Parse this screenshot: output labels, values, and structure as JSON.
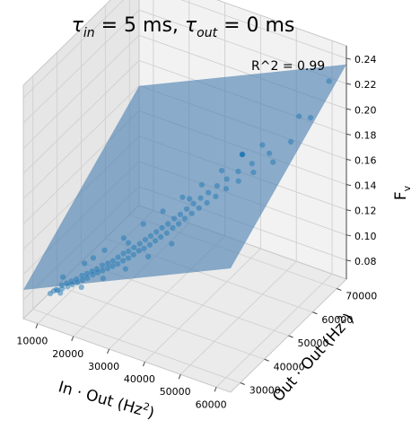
{
  "chart_data": {
    "type": "scatter3d",
    "title": "τin = 5 ms, τout = 0 ms",
    "title_parts": {
      "sym1": "τ",
      "sub1": "in",
      "mid": " = 5 ms, ",
      "sym2": "τ",
      "sub2": "out",
      "end": " = 0 ms"
    },
    "annotation": "R^2 = 0.99",
    "xlabel": "In · Out (Hz²)",
    "xlabel_parts": {
      "base": "In · Out (Hz",
      "sup": "2",
      "end": ")"
    },
    "ylabel": "Out · Out (Hz²)",
    "ylabel_parts": {
      "base": "Out · Out (Hz",
      "sup": "2",
      "end": ")"
    },
    "zlabel": "F_v",
    "zlabel_parts": {
      "base": "F",
      "sub": "v"
    },
    "xlim": [
      6000,
      64000
    ],
    "ylim": [
      26000,
      74000
    ],
    "zlim": [
      0.065,
      0.25
    ],
    "xticks": [
      10000,
      20000,
      30000,
      40000,
      50000,
      60000
    ],
    "yticks": [
      30000,
      40000,
      50000,
      60000,
      70000
    ],
    "zticks": [
      0.08,
      0.1,
      0.12,
      0.14,
      0.16,
      0.18,
      0.2,
      0.22,
      0.24
    ],
    "xtick_labels": [
      "10000",
      "20000",
      "30000",
      "40000",
      "50000",
      "60000"
    ],
    "ytick_labels": [
      "30000",
      "40000",
      "50000",
      "60000",
      "70000"
    ],
    "ztick_labels": [
      "0.08",
      "0.10",
      "0.12",
      "0.14",
      "0.16",
      "0.18",
      "0.20",
      "0.22",
      "0.24"
    ],
    "fit_plane": {
      "intercept": 0.041,
      "coef_x": 1.3e-06,
      "coef_y": 1.5e-06,
      "color": "#4a7fb0"
    },
    "grid": true,
    "point_color": "#1f77b4",
    "series": [
      {
        "points": [
          [
            10500,
            30500,
            0.081
          ],
          [
            11200,
            30900,
            0.083
          ],
          [
            11800,
            31200,
            0.084
          ],
          [
            12400,
            30800,
            0.085
          ],
          [
            13000,
            31600,
            0.088
          ],
          [
            13500,
            31000,
            0.087
          ],
          [
            14100,
            32000,
            0.09
          ],
          [
            14700,
            31500,
            0.089
          ],
          [
            15200,
            32400,
            0.092
          ],
          [
            15800,
            31800,
            0.091
          ],
          [
            16300,
            32800,
            0.094
          ],
          [
            16900,
            32200,
            0.093
          ],
          [
            17500,
            33300,
            0.097
          ],
          [
            18000,
            32700,
            0.095
          ],
          [
            18600,
            33700,
            0.099
          ],
          [
            19100,
            33100,
            0.097
          ],
          [
            19700,
            34200,
            0.101
          ],
          [
            20300,
            33600,
            0.1
          ],
          [
            20800,
            34600,
            0.103
          ],
          [
            21400,
            34000,
            0.102
          ],
          [
            21900,
            35200,
            0.106
          ],
          [
            22500,
            34400,
            0.104
          ],
          [
            23100,
            35700,
            0.108
          ],
          [
            23600,
            34900,
            0.106
          ],
          [
            24200,
            36200,
            0.11
          ],
          [
            24700,
            35300,
            0.108
          ],
          [
            25300,
            36700,
            0.113
          ],
          [
            25800,
            35800,
            0.11
          ],
          [
            26400,
            37300,
            0.116
          ],
          [
            27000,
            36200,
            0.113
          ],
          [
            27500,
            37800,
            0.118
          ],
          [
            28100,
            36800,
            0.115
          ],
          [
            28600,
            38400,
            0.121
          ],
          [
            29200,
            37300,
            0.118
          ],
          [
            29800,
            39000,
            0.124
          ],
          [
            30300,
            37900,
            0.121
          ],
          [
            30900,
            39700,
            0.127
          ],
          [
            31400,
            38400,
            0.123
          ],
          [
            32000,
            40300,
            0.13
          ],
          [
            32600,
            39000,
            0.126
          ],
          [
            33100,
            41000,
            0.133
          ],
          [
            33700,
            39700,
            0.129
          ],
          [
            34200,
            41700,
            0.136
          ],
          [
            34800,
            40300,
            0.132
          ],
          [
            35400,
            42400,
            0.139
          ],
          [
            36000,
            41000,
            0.135
          ],
          [
            36600,
            43200,
            0.143
          ],
          [
            37200,
            41700,
            0.139
          ],
          [
            37800,
            44000,
            0.146
          ],
          [
            38400,
            42400,
            0.142
          ],
          [
            39000,
            44800,
            0.15
          ],
          [
            39600,
            43200,
            0.146
          ],
          [
            40300,
            45700,
            0.154
          ],
          [
            41000,
            44000,
            0.15
          ],
          [
            41700,
            46600,
            0.158
          ],
          [
            42400,
            44900,
            0.154
          ],
          [
            43200,
            47600,
            0.162
          ],
          [
            44000,
            45800,
            0.158
          ],
          [
            44900,
            48700,
            0.167
          ],
          [
            45800,
            46800,
            0.163
          ],
          [
            46800,
            49900,
            0.172
          ],
          [
            47900,
            48000,
            0.169
          ],
          [
            49100,
            51200,
            0.178
          ],
          [
            50400,
            49400,
            0.175
          ],
          [
            51900,
            52800,
            0.184
          ],
          [
            53500,
            51000,
            0.182
          ],
          [
            55400,
            54800,
            0.192
          ],
          [
            57500,
            53200,
            0.19
          ],
          [
            59800,
            57200,
            0.201
          ],
          [
            62200,
            61800,
            0.214
          ],
          [
            12000,
            33500,
            0.09
          ],
          [
            16500,
            35800,
            0.101
          ],
          [
            20500,
            38200,
            0.111
          ],
          [
            24500,
            40200,
            0.121
          ],
          [
            28500,
            42400,
            0.132
          ],
          [
            32500,
            44600,
            0.142
          ],
          [
            36500,
            46800,
            0.153
          ],
          [
            40500,
            48900,
            0.163
          ],
          [
            44500,
            51200,
            0.174
          ],
          [
            48500,
            53800,
            0.186
          ],
          [
            13800,
            29800,
            0.086
          ],
          [
            19000,
            30800,
            0.094
          ],
          [
            24000,
            32400,
            0.103
          ],
          [
            29000,
            34300,
            0.112
          ],
          [
            34000,
            36300,
            0.123
          ],
          [
            39000,
            38600,
            0.134
          ],
          [
            18200,
            36900,
            0.105
          ],
          [
            26200,
            39600,
            0.12
          ],
          [
            38000,
            47500,
            0.152
          ],
          [
            52500,
            56200,
            0.193
          ],
          [
            58500,
            62500,
            0.21
          ],
          [
            61500,
            70500,
            0.226
          ]
        ]
      }
    ]
  }
}
